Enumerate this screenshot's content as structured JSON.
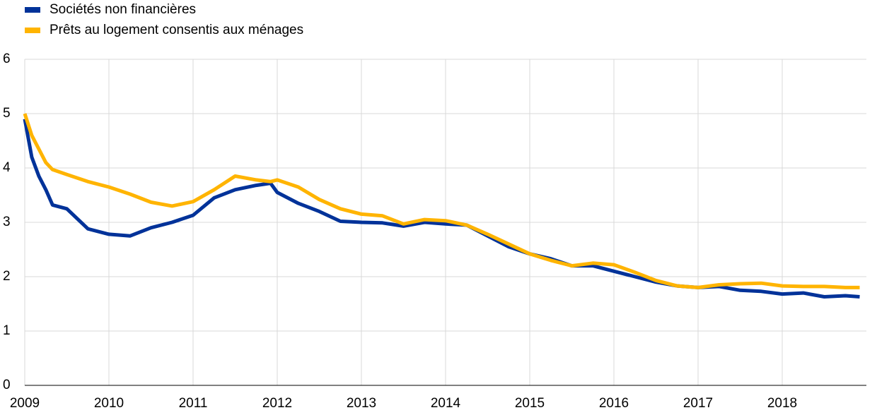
{
  "chart_data": {
    "type": "line",
    "x": [
      2009.0,
      2009.083,
      2009.167,
      2009.25,
      2009.33,
      2009.5,
      2009.75,
      2010.0,
      2010.25,
      2010.5,
      2010.75,
      2011.0,
      2011.25,
      2011.5,
      2011.75,
      2011.92,
      2012.0,
      2012.25,
      2012.5,
      2012.75,
      2013.0,
      2013.25,
      2013.5,
      2013.75,
      2014.0,
      2014.25,
      2014.5,
      2014.75,
      2015.0,
      2015.25,
      2015.5,
      2015.75,
      2016.0,
      2016.25,
      2016.5,
      2016.75,
      2017.0,
      2017.25,
      2017.5,
      2017.75,
      2018.0,
      2018.25,
      2018.5,
      2018.75,
      2018.92
    ],
    "series": [
      {
        "name": "Sociétés non financières",
        "color": "#003299",
        "values": [
          4.9,
          4.2,
          3.85,
          3.6,
          3.32,
          3.25,
          2.88,
          2.78,
          2.75,
          2.9,
          3.0,
          3.13,
          3.45,
          3.6,
          3.68,
          3.72,
          3.55,
          3.35,
          3.2,
          3.02,
          3.0,
          2.99,
          2.93,
          3.0,
          2.97,
          2.95,
          2.75,
          2.55,
          2.42,
          2.33,
          2.2,
          2.2,
          2.1,
          2.0,
          1.9,
          1.83,
          1.8,
          1.82,
          1.75,
          1.73,
          1.68,
          1.7,
          1.63,
          1.65,
          1.63
        ]
      },
      {
        "name": "Prêts au logement consentis aux ménages",
        "color": "#ffb400",
        "values": [
          5.0,
          4.6,
          4.35,
          4.1,
          3.97,
          3.88,
          3.75,
          3.65,
          3.52,
          3.37,
          3.3,
          3.38,
          3.6,
          3.85,
          3.78,
          3.75,
          3.78,
          3.65,
          3.42,
          3.25,
          3.15,
          3.12,
          2.97,
          3.05,
          3.03,
          2.95,
          2.78,
          2.6,
          2.42,
          2.3,
          2.2,
          2.25,
          2.22,
          2.08,
          1.93,
          1.83,
          1.8,
          1.85,
          1.87,
          1.88,
          1.83,
          1.82,
          1.82,
          1.8,
          1.8
        ]
      }
    ],
    "xlim": [
      2009,
      2019
    ],
    "xticks": [
      2009,
      2010,
      2011,
      2012,
      2013,
      2014,
      2015,
      2016,
      2017,
      2018
    ],
    "ylim": [
      0,
      6
    ],
    "yticks": [
      0,
      1,
      2,
      3,
      4,
      5,
      6
    ],
    "grid": true
  }
}
